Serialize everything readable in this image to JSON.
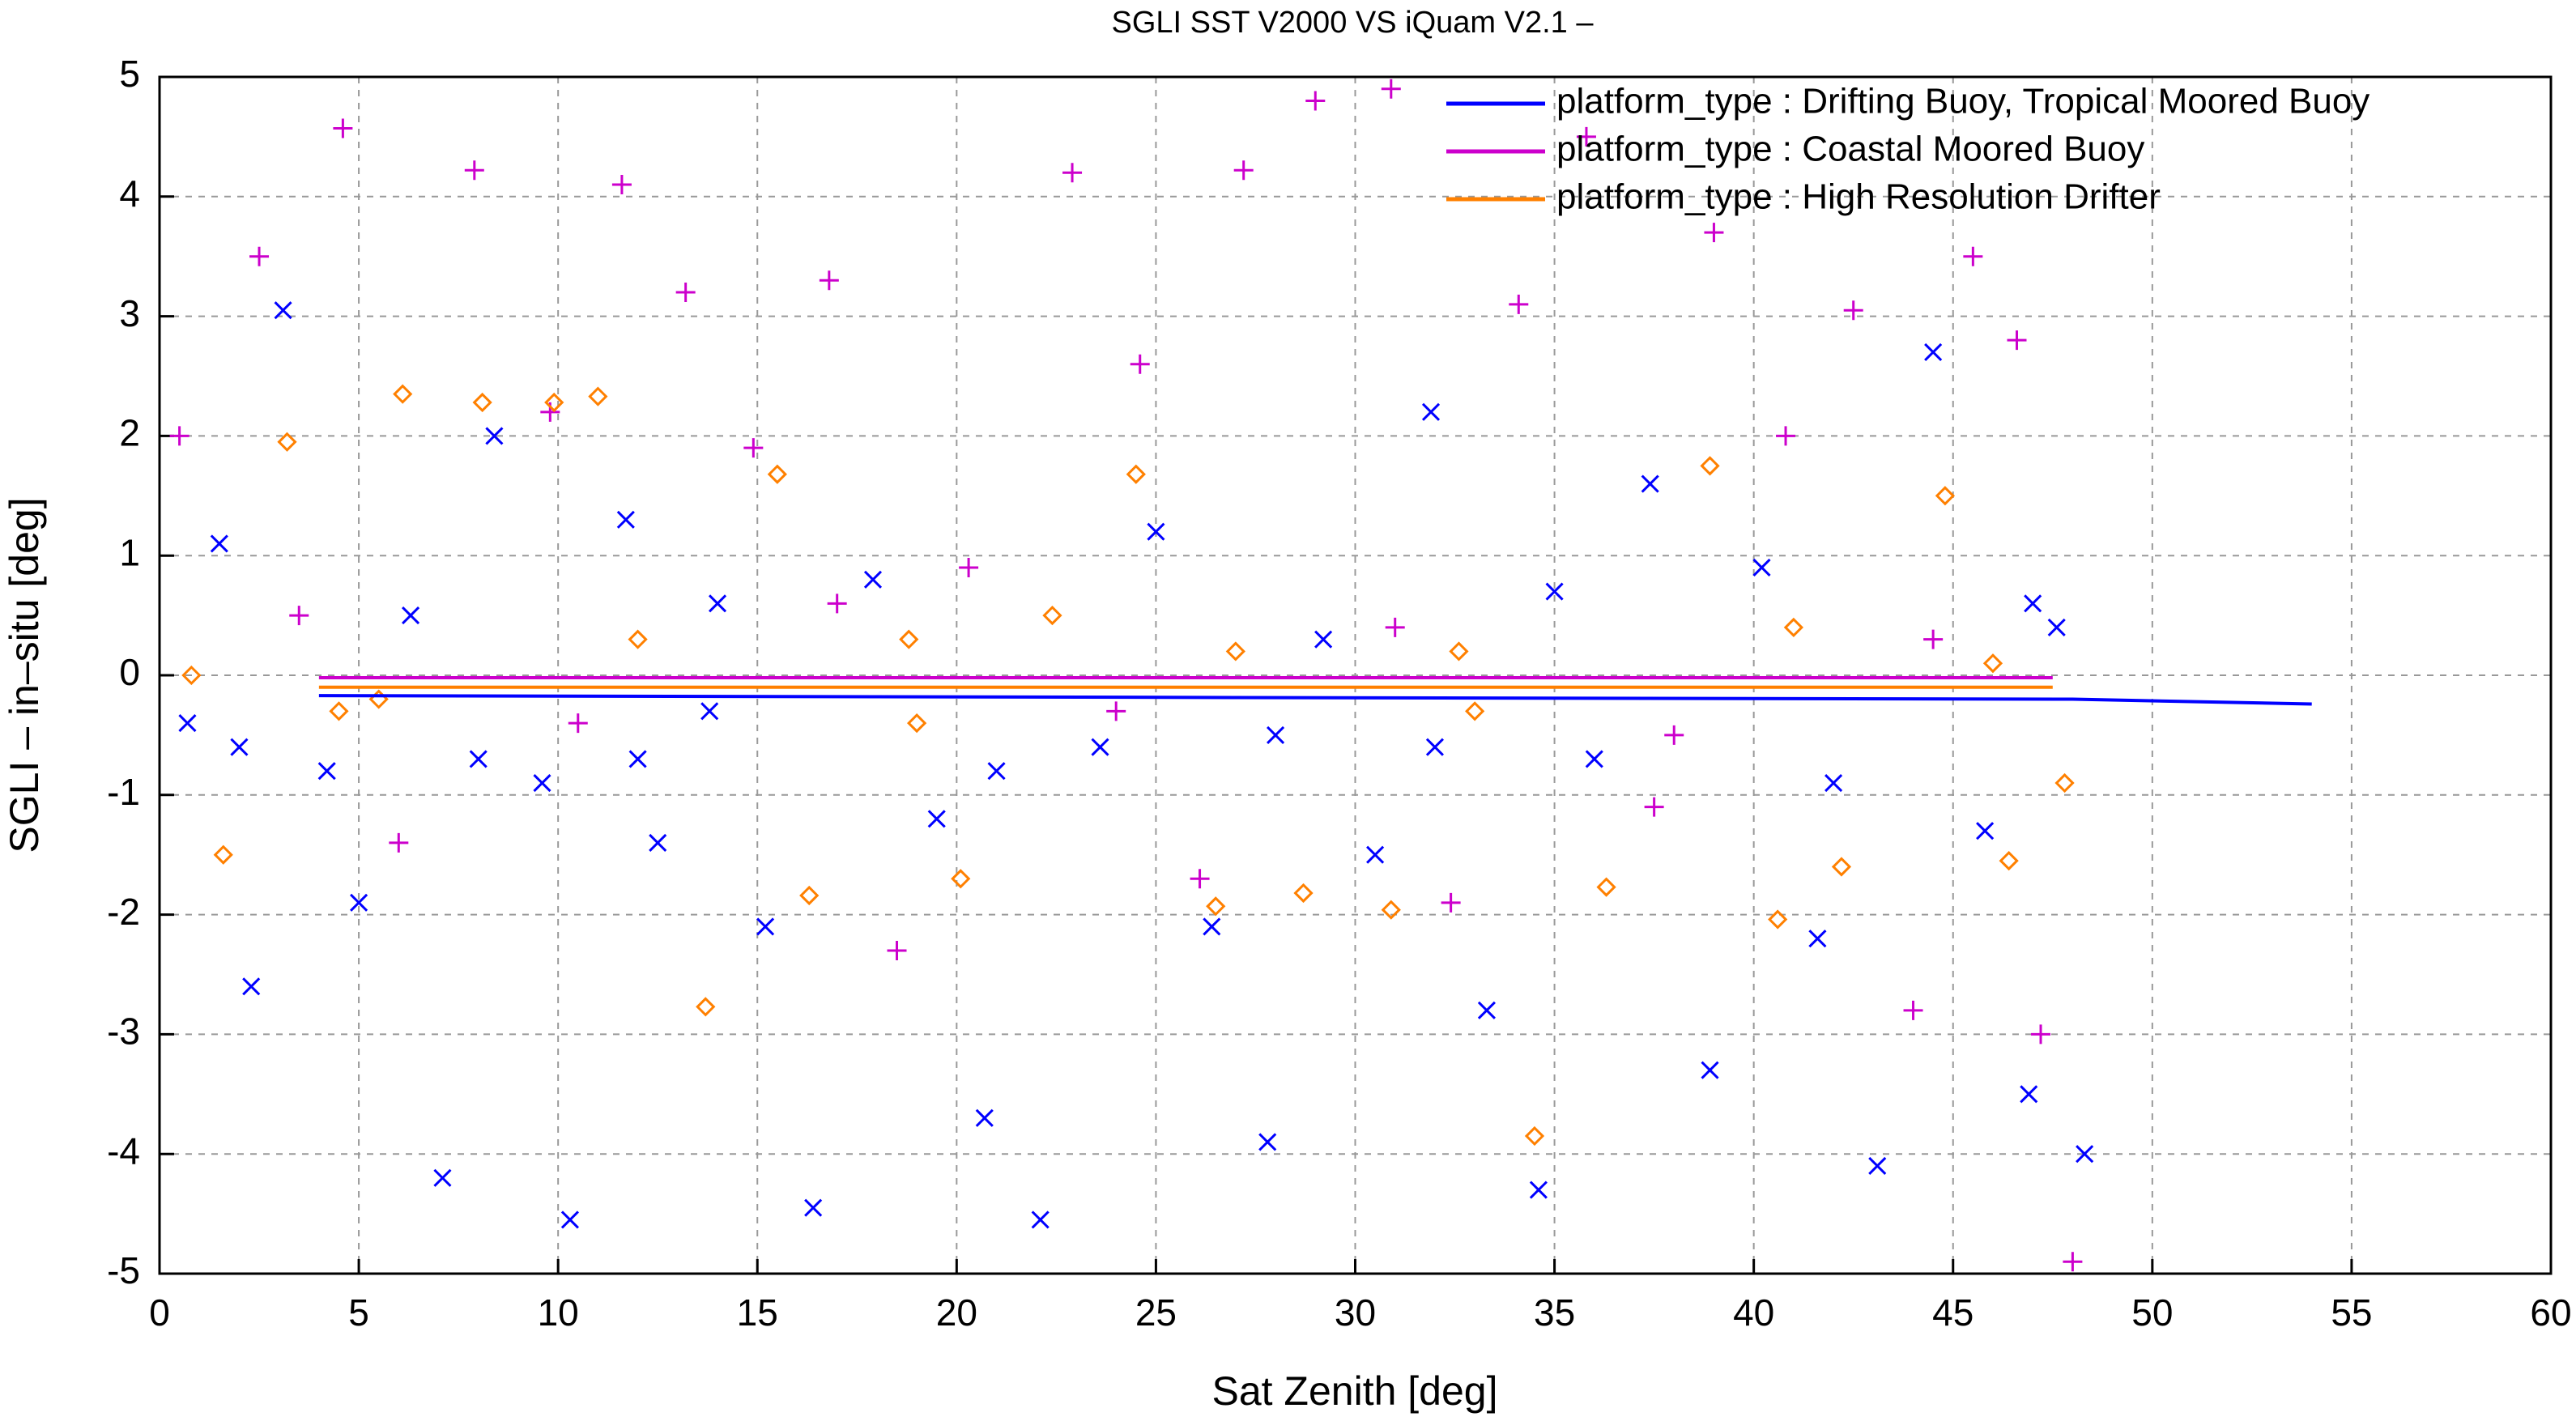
{
  "chart_data": {
    "type": "scatter",
    "title": "SGLI SST V2000 VS iQuam V2.1  –",
    "x_label": "Sat Zenith [deg]",
    "y_label": "SGLI – in–situ [deg]",
    "xlim": [
      0,
      60
    ],
    "ylim": [
      -5,
      5
    ],
    "xticks": [
      0,
      5,
      10,
      15,
      20,
      25,
      30,
      35,
      40,
      45,
      50,
      55,
      60
    ],
    "yticks": [
      -5,
      -4,
      -3,
      -2,
      -1,
      0,
      1,
      2,
      3,
      4,
      5
    ],
    "grid": true,
    "legend": "upper right",
    "series": [
      {
        "name": "platform_type : Drifting Buoy, Tropical Moored Buoy",
        "color": "#0000ff",
        "marker": "x",
        "x": [
          0.7,
          1.5,
          2.3,
          3.1,
          4.2,
          5.0,
          6.3,
          7.1,
          8.4,
          9.6,
          10.3,
          11.7,
          12.5,
          13.8,
          15.2,
          16.4,
          17.9,
          19.5,
          20.7,
          22.1,
          23.6,
          25.0,
          26.4,
          27.8,
          29.2,
          30.5,
          31.9,
          33.3,
          34.6,
          36.0,
          37.4,
          38.9,
          40.2,
          41.6,
          43.1,
          44.5,
          45.8,
          46.9,
          47.6,
          48.3,
          2.0,
          8.0,
          14.0,
          21.0,
          28.0,
          35.0,
          42.0,
          47.0,
          12.0,
          32.0
        ],
        "y": [
          -0.4,
          1.1,
          -2.6,
          3.05,
          -0.8,
          -1.9,
          0.5,
          -4.2,
          2.0,
          -0.9,
          -4.55,
          1.3,
          -1.4,
          -0.3,
          -2.1,
          -4.45,
          0.8,
          -1.2,
          -3.7,
          -4.55,
          -0.6,
          1.2,
          -2.1,
          -3.9,
          0.3,
          -1.5,
          2.2,
          -2.8,
          -4.3,
          -0.7,
          1.6,
          -3.3,
          0.9,
          -2.2,
          -4.1,
          2.7,
          -1.3,
          -3.5,
          0.4,
          -4.0,
          -0.6,
          -0.7,
          0.6,
          -0.8,
          -0.5,
          0.7,
          -0.9,
          0.6,
          -0.7,
          -0.6
        ],
        "fit_x": [
          4,
          48,
          54
        ],
        "fit_y": [
          -0.17,
          -0.2,
          -0.24
        ]
      },
      {
        "name": "platform_type : Coastal Moored Buoy",
        "color": "#cc00cc",
        "marker": "+",
        "x": [
          0.5,
          2.5,
          4.6,
          6.0,
          7.9,
          9.8,
          11.6,
          13.2,
          14.9,
          16.8,
          18.5,
          20.3,
          22.9,
          24.6,
          26.1,
          27.2,
          29.0,
          30.9,
          32.4,
          34.1,
          35.8,
          37.5,
          39.0,
          40.8,
          42.5,
          44.0,
          45.5,
          46.6,
          47.2,
          48.0,
          3.5,
          10.5,
          17.0,
          24.0,
          31.0,
          38.0,
          44.5
        ],
        "y": [
          2.0,
          3.5,
          4.57,
          -1.4,
          4.22,
          2.2,
          4.1,
          3.2,
          1.9,
          3.3,
          -2.3,
          0.9,
          4.2,
          2.6,
          -1.7,
          4.22,
          4.8,
          4.9,
          -1.9,
          3.1,
          4.5,
          -1.1,
          3.7,
          2.0,
          3.05,
          -2.8,
          3.5,
          2.8,
          -3.0,
          -4.9,
          0.5,
          -0.4,
          0.6,
          -0.3,
          0.4,
          -0.5,
          0.3
        ],
        "fit_x": [
          4,
          47.5
        ],
        "fit_y": [
          -0.02,
          -0.02
        ]
      },
      {
        "name": "platform_type : High Resolution Drifter",
        "color": "#ff8000",
        "marker": "diamond",
        "x": [
          0.8,
          1.6,
          3.2,
          4.5,
          6.1,
          8.1,
          9.9,
          11.0,
          13.7,
          15.5,
          16.3,
          18.8,
          20.1,
          22.4,
          24.5,
          26.5,
          28.7,
          30.9,
          32.6,
          34.5,
          36.3,
          38.9,
          40.6,
          42.2,
          44.8,
          46.4,
          47.8,
          5.5,
          12.0,
          19.0,
          27.0,
          33.0,
          41.0,
          46.0
        ],
        "y": [
          0.0,
          -1.5,
          1.95,
          -0.3,
          2.35,
          2.28,
          2.28,
          2.33,
          -2.77,
          1.68,
          -1.84,
          0.3,
          -1.7,
          0.5,
          1.68,
          -1.93,
          -1.82,
          -1.96,
          0.2,
          -3.85,
          -1.77,
          1.75,
          -2.04,
          -1.6,
          1.5,
          -1.55,
          -0.9,
          -0.2,
          0.3,
          -0.4,
          0.2,
          -0.3,
          0.4,
          0.1
        ],
        "fit_x": [
          4,
          47.5
        ],
        "fit_y": [
          -0.1,
          -0.1
        ]
      }
    ]
  }
}
